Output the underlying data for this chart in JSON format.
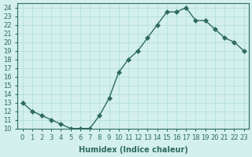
{
  "x": [
    0,
    1,
    2,
    3,
    4,
    5,
    6,
    7,
    8,
    9,
    10,
    11,
    12,
    13,
    14,
    15,
    16,
    17,
    18,
    19,
    20,
    21,
    22,
    23
  ],
  "y": [
    13,
    12,
    11.5,
    11,
    10.5,
    10,
    10,
    10,
    11.5,
    13.5,
    16.5,
    18,
    19,
    20.5,
    22,
    23.5,
    23.5,
    24,
    22.5,
    22.5,
    21.5,
    20.5,
    20,
    19
  ],
  "xlabel": "Humidex (Indice chaleur)",
  "line_color": "#2d6b5e",
  "marker": "D",
  "marker_size": 3,
  "bg_color": "#d4f0ec",
  "grid_color": "#aaddda",
  "xlim": [
    -0.5,
    23.5
  ],
  "ylim": [
    10,
    24.5
  ],
  "yticks": [
    10,
    11,
    12,
    13,
    14,
    15,
    16,
    17,
    18,
    19,
    20,
    21,
    22,
    23,
    24
  ],
  "xticks": [
    0,
    1,
    2,
    3,
    4,
    5,
    6,
    7,
    8,
    9,
    10,
    11,
    12,
    13,
    14,
    15,
    16,
    17,
    18,
    19,
    20,
    21,
    22,
    23
  ],
  "tick_fontsize": 6,
  "label_fontsize": 7
}
